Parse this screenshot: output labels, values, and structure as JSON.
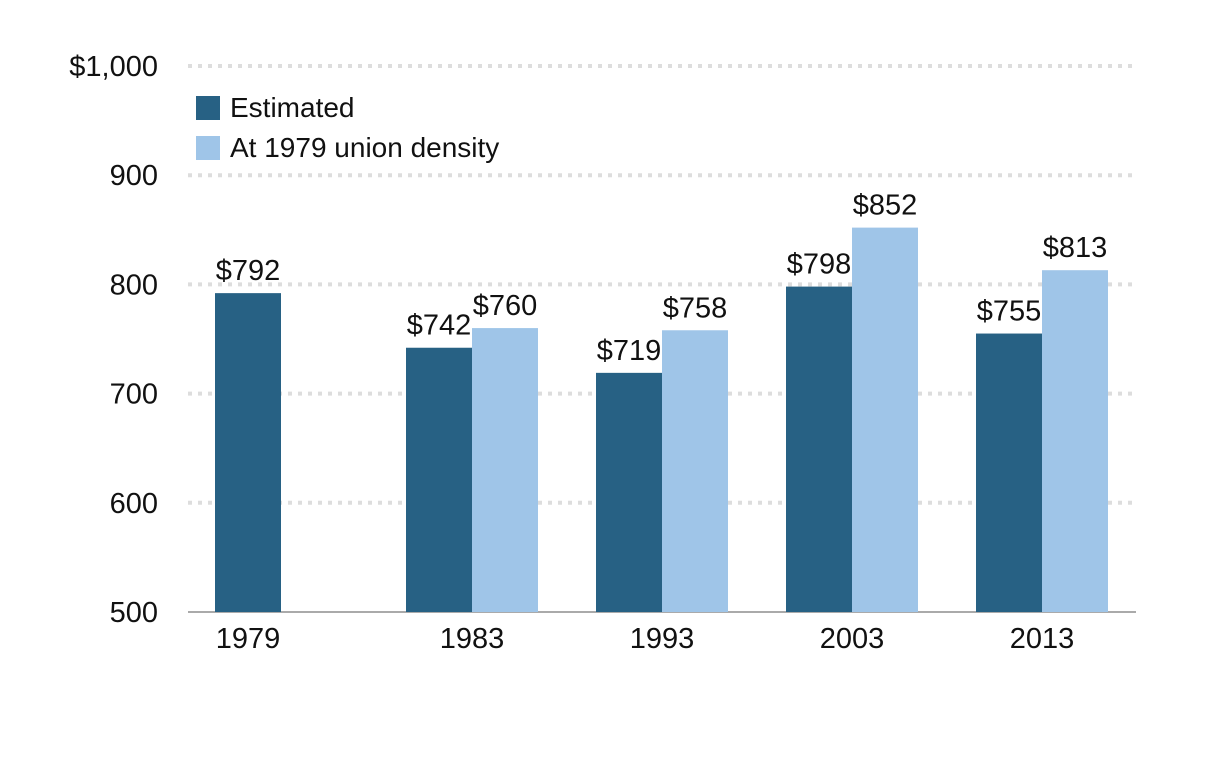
{
  "chart_data": {
    "type": "bar",
    "categories": [
      "1979",
      "1983",
      "1993",
      "2003",
      "2013"
    ],
    "series": [
      {
        "name": "Estimated",
        "color": "#276184",
        "values": [
          792,
          742,
          719,
          798,
          755
        ]
      },
      {
        "name": "At 1979 union density",
        "color": "#9fc5e8",
        "values": [
          null,
          760,
          758,
          852,
          813
        ]
      }
    ],
    "data_labels": [
      [
        "$792",
        "$742",
        "$719",
        "$798",
        "$755"
      ],
      [
        null,
        "$760",
        "$758",
        "$852",
        "$813"
      ]
    ],
    "yticks": [
      {
        "value": 500,
        "label": "500"
      },
      {
        "value": 600,
        "label": "600"
      },
      {
        "value": 700,
        "label": "700"
      },
      {
        "value": 800,
        "label": "800"
      },
      {
        "value": 900,
        "label": "900"
      },
      {
        "value": 1000,
        "label": "$1,000"
      }
    ],
    "ylim": [
      500,
      1000
    ],
    "grid": true,
    "legend_position": "top-left"
  }
}
